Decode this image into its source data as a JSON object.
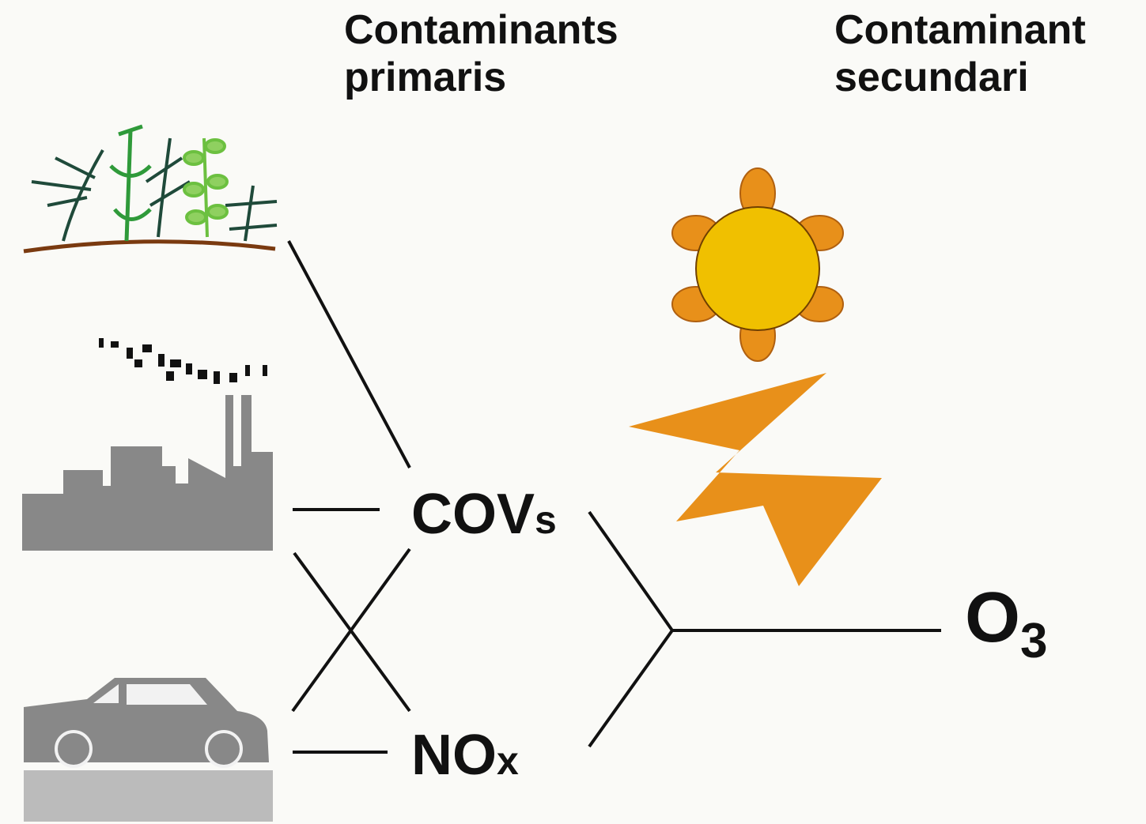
{
  "header": {
    "primary": [
      "Contaminants",
      "primaris"
    ],
    "secondary": [
      "Contaminant",
      "secundari"
    ]
  },
  "nodes": {
    "covs": {
      "text": "COV",
      "suffix": "s"
    },
    "nox": {
      "text": "NO",
      "suffix": "x"
    },
    "o3": {
      "text": "O",
      "subscript": "3"
    }
  }
}
